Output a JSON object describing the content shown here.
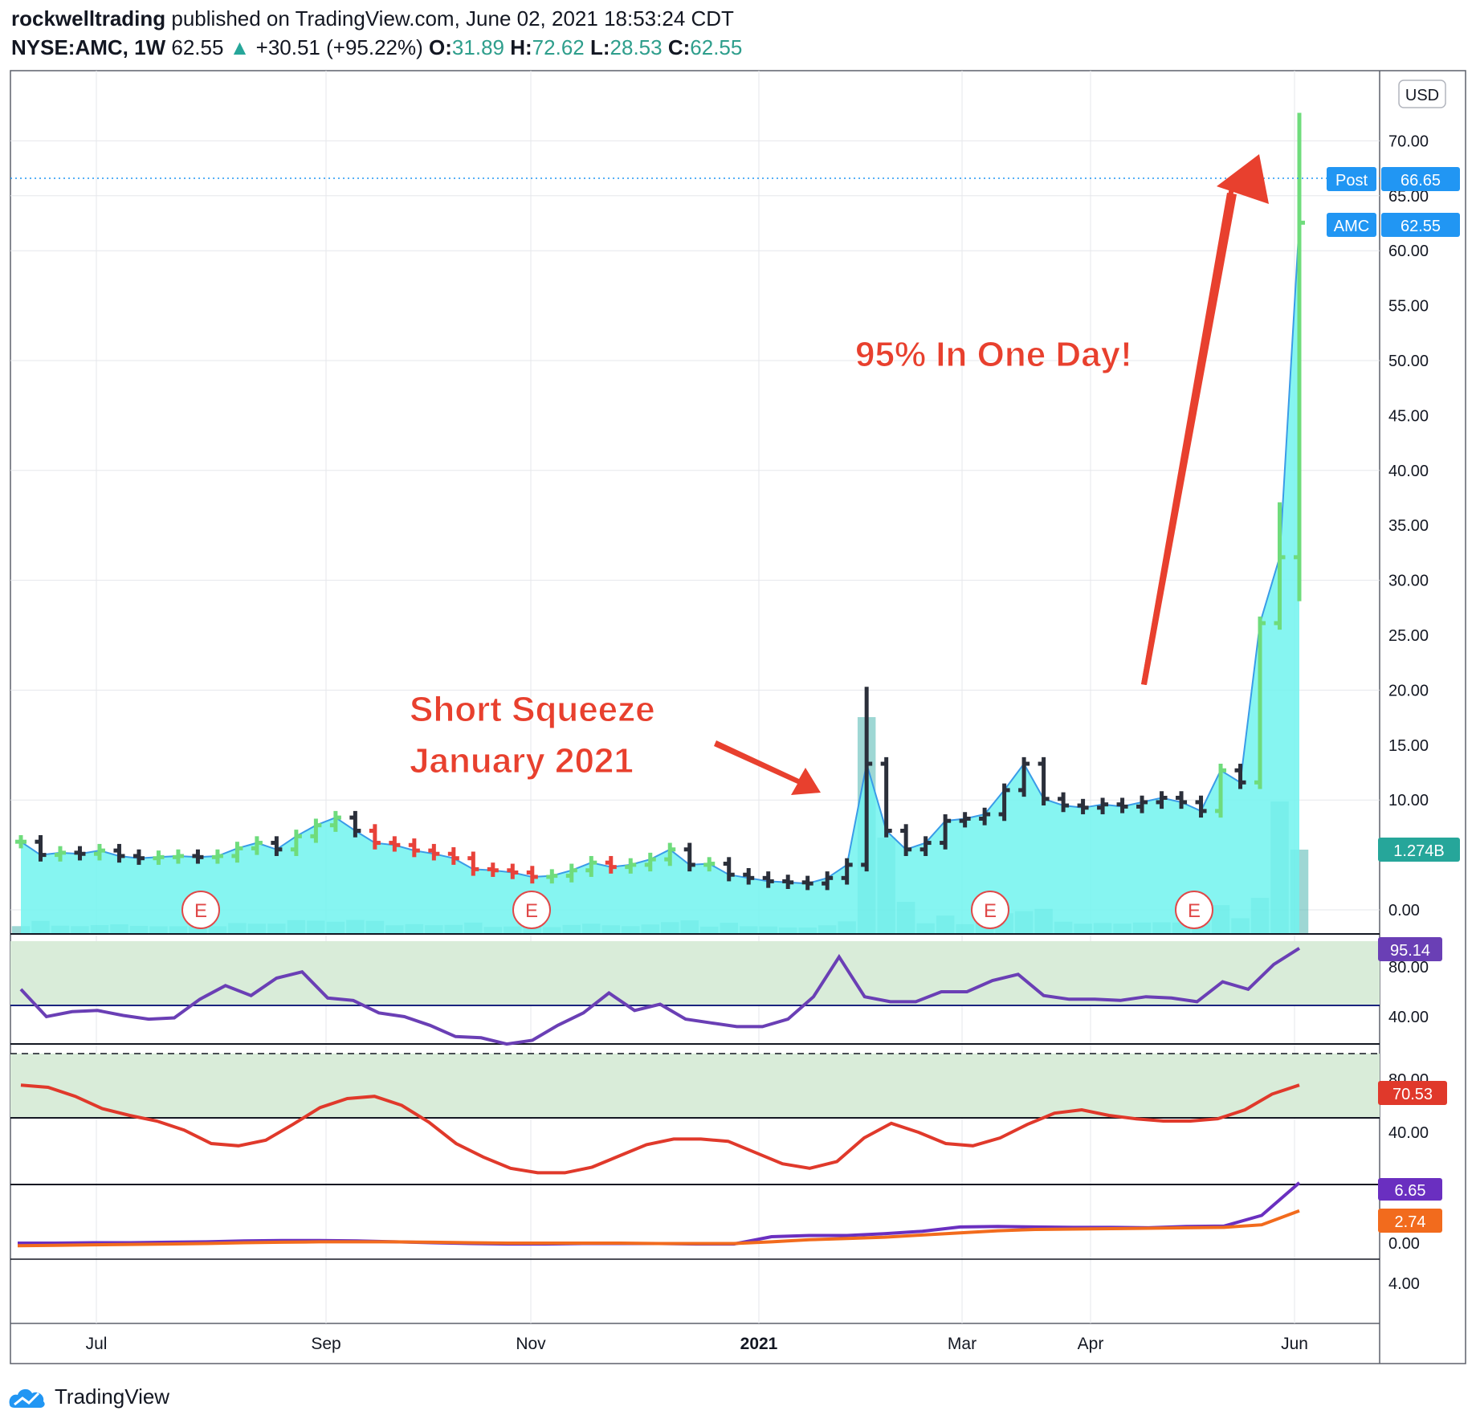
{
  "header": {
    "author": "rockwelltrading",
    "published": "published on TradingView.com, June 02, 2021 18:53:24 CDT",
    "symbol": "NYSE:AMC, 1W",
    "last": "62.55",
    "change": "+30.51 (+95.22%)",
    "o_label": "O:",
    "o": "31.89",
    "h_label": "H:",
    "h": "72.62",
    "l_label": "L:",
    "l": "28.53",
    "c_label": "C:",
    "c": "62.55"
  },
  "colors": {
    "up": "#6fdc7c",
    "down_dark": "#2b2f3a",
    "down_red": "#e8423a",
    "area_fill": "#71f3ee",
    "line": "#3a9be8",
    "annotation": "#e8402e",
    "rsi_line": "#6a3fb5",
    "stoch_line": "#e0392b",
    "zone": "#d9ecd9"
  },
  "price_scale": {
    "currency": "USD",
    "ticks": [
      "70.00",
      "65.00",
      "60.00",
      "55.00",
      "50.00",
      "45.00",
      "40.00",
      "35.00",
      "30.00",
      "25.00",
      "20.00",
      "15.00",
      "10.00",
      "0.00"
    ],
    "post_label": "Post",
    "post_value": "66.65",
    "amc_label": "AMC",
    "amc_value": "62.55",
    "volume_label": "1.274B"
  },
  "x_axis": [
    "Jul",
    "Sep",
    "Nov",
    "2021",
    "Mar",
    "Apr",
    "Jun"
  ],
  "annotations": {
    "short_squeeze_line1": "Short Squeeze",
    "short_squeeze_line2": "January 2021",
    "ninety_five": "95% In One Day!"
  },
  "earnings_marker": "E",
  "rsi": {
    "value": "95.14",
    "ticks": [
      "80.00",
      "40.00"
    ]
  },
  "stoch": {
    "value": "70.53",
    "ticks": [
      "80.00",
      "40.00"
    ]
  },
  "macd": {
    "value1": "6.65",
    "value2": "2.74",
    "ticks": [
      "0.00",
      "4.00"
    ]
  },
  "footer": {
    "brand": "TradingView"
  },
  "chart_data": {
    "type": "line",
    "title": "NYSE:AMC, 1W",
    "ylabel": "USD",
    "ylim": [
      -1.5,
      76
    ],
    "closes": [
      6.2,
      5.0,
      5.2,
      5.1,
      5.4,
      4.9,
      4.7,
      4.8,
      4.9,
      4.8,
      4.9,
      5.6,
      6.1,
      5.5,
      6.7,
      7.7,
      8.4,
      7.2,
      6.1,
      5.9,
      5.4,
      5.1,
      4.7,
      3.7,
      3.6,
      3.4,
      3.0,
      3.1,
      3.6,
      4.3,
      3.9,
      4.1,
      4.6,
      5.5,
      4.1,
      4.2,
      3.2,
      2.9,
      2.6,
      2.5,
      2.4,
      2.9,
      4.1,
      13.3,
      7.2,
      5.5,
      6.1,
      8.1,
      8.3,
      8.7,
      10.9,
      13.3,
      10.1,
      9.5,
      9.3,
      9.6,
      9.4,
      9.8,
      10.2,
      9.8,
      9.0,
      12.7,
      11.6,
      26.1,
      32.1,
      62.55
    ]
  }
}
